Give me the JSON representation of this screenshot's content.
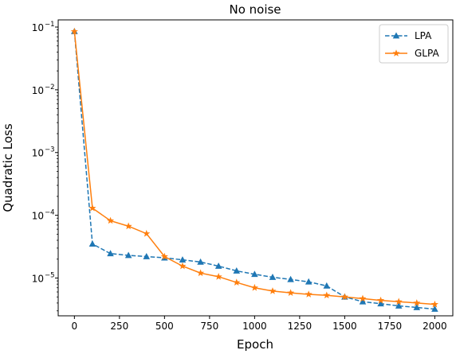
{
  "chart_data": {
    "type": "line",
    "title": "No noise",
    "xlabel": "Epoch",
    "ylabel": "Quadratic Loss",
    "xlim": [
      -90,
      2100
    ],
    "ylim": [
      2.5e-06,
      0.13
    ],
    "yscale": "log",
    "grid": false,
    "legend_position": "top-right",
    "x_ticks": [
      0,
      250,
      500,
      750,
      1000,
      1250,
      1500,
      1750,
      2000
    ],
    "x_tick_labels": [
      "0",
      "250",
      "500",
      "750",
      "1000",
      "1250",
      "1500",
      "1750",
      "2000"
    ],
    "y_ticks": [
      1e-05,
      0.0001,
      0.001,
      0.01,
      0.1
    ],
    "y_tick_labels": [
      {
        "base": "10",
        "exp": "−5"
      },
      {
        "base": "10",
        "exp": "−4"
      },
      {
        "base": "10",
        "exp": "−3"
      },
      {
        "base": "10",
        "exp": "−2"
      },
      {
        "base": "10",
        "exp": "−1"
      }
    ],
    "x": [
      0,
      100,
      200,
      300,
      400,
      500,
      600,
      700,
      800,
      900,
      1000,
      1100,
      1200,
      1300,
      1400,
      1500,
      1600,
      1700,
      1800,
      1900,
      2000
    ],
    "series": [
      {
        "name": "LPA",
        "color": "#1f77b4",
        "linestyle": "dashed",
        "marker": "triangle",
        "values": [
          0.085,
          3.5e-05,
          2.45e-05,
          2.3e-05,
          2.2e-05,
          2.1e-05,
          1.95e-05,
          1.8e-05,
          1.55e-05,
          1.3e-05,
          1.15e-05,
          1.03e-05,
          9.5e-06,
          8.7e-06,
          7.5e-06,
          5e-06,
          4.2e-06,
          3.9e-06,
          3.6e-06,
          3.4e-06,
          3.2e-06
        ]
      },
      {
        "name": "GLPA",
        "color": "#ff7f0e",
        "linestyle": "solid",
        "marker": "star",
        "values": [
          0.085,
          0.00013,
          8.2e-05,
          6.7e-05,
          5.1e-05,
          2.2e-05,
          1.55e-05,
          1.2e-05,
          1.05e-05,
          8.5e-06,
          7e-06,
          6.2e-06,
          5.8e-06,
          5.5e-06,
          5.3e-06,
          5e-06,
          4.7e-06,
          4.4e-06,
          4.2e-06,
          4e-06,
          3.8e-06
        ]
      }
    ]
  }
}
